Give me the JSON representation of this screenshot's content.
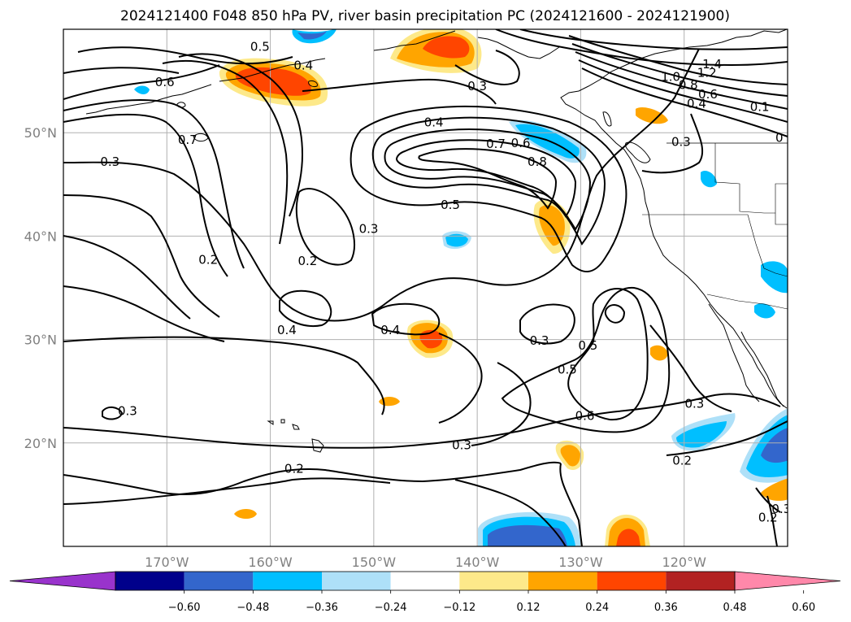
{
  "title": "2024121400 F048 850 hPa PV, river basin precipitation PC (2024121600 - 2024121900)",
  "map": {
    "lon_range": [
      -180,
      -110
    ],
    "lat_range": [
      10,
      60
    ],
    "lat_ticks": [
      {
        "value": 50,
        "label": "50°N"
      },
      {
        "value": 40,
        "label": "40°N"
      },
      {
        "value": 30,
        "label": "30°N"
      },
      {
        "value": 20,
        "label": "20°N"
      }
    ],
    "lon_ticks": [
      {
        "value": -170,
        "label": "170°W"
      },
      {
        "value": -160,
        "label": "160°W"
      },
      {
        "value": -150,
        "label": "150°W"
      },
      {
        "value": -140,
        "label": "140°W"
      },
      {
        "value": -130,
        "label": "130°W"
      },
      {
        "value": -120,
        "label": "120°W"
      }
    ],
    "grid": true
  },
  "colorbar": {
    "extend": "both",
    "colors": [
      "#9933cc",
      "#00008b",
      "#3366cc",
      "#00bfff",
      "#aee0f8",
      "#ffffff",
      "#fde98a",
      "#ffa500",
      "#ff4500",
      "#b22222",
      "#ff88aa"
    ],
    "ticks": [
      "−0.60",
      "−0.48",
      "−0.36",
      "−0.24",
      "−0.12",
      "0.12",
      "0.24",
      "0.36",
      "0.48",
      "0.60"
    ]
  },
  "contour_labels": [
    {
      "text": "0.5",
      "lon": -161,
      "lat": 58.3
    },
    {
      "text": "0.4",
      "lon": -156.8,
      "lat": 56.5
    },
    {
      "text": "0.6",
      "lon": -170.2,
      "lat": 54.9
    },
    {
      "text": "0.7",
      "lon": -168,
      "lat": 49.3
    },
    {
      "text": "0.3",
      "lon": -175.5,
      "lat": 47.2
    },
    {
      "text": "0.2",
      "lon": -166,
      "lat": 37.7
    },
    {
      "text": "0.3",
      "lon": -150.5,
      "lat": 40.7
    },
    {
      "text": "0.2",
      "lon": -156.4,
      "lat": 37.6
    },
    {
      "text": "0.5",
      "lon": -142.6,
      "lat": 43
    },
    {
      "text": "0.4",
      "lon": -144.2,
      "lat": 51
    },
    {
      "text": "0.7",
      "lon": -138.2,
      "lat": 48.9
    },
    {
      "text": "0.6",
      "lon": -135.8,
      "lat": 49
    },
    {
      "text": "0.8",
      "lon": -134.2,
      "lat": 47.2
    },
    {
      "text": "0.3",
      "lon": -140,
      "lat": 54.5
    },
    {
      "text": "0.4",
      "lon": -158.4,
      "lat": 30.9
    },
    {
      "text": "0.4",
      "lon": -148.4,
      "lat": 30.9
    },
    {
      "text": "0.3",
      "lon": -134,
      "lat": 29.9
    },
    {
      "text": "0.5",
      "lon": -129.3,
      "lat": 29.4
    },
    {
      "text": "0.5",
      "lon": -131.3,
      "lat": 27.1
    },
    {
      "text": "0.6",
      "lon": -129.6,
      "lat": 22.6
    },
    {
      "text": "0.3",
      "lon": -141.5,
      "lat": 19.8
    },
    {
      "text": "0.2",
      "lon": -157.7,
      "lat": 17.5
    },
    {
      "text": "0.3",
      "lon": -173.8,
      "lat": 23.1
    },
    {
      "text": "0.3",
      "lon": -119,
      "lat": 23.8
    },
    {
      "text": "0.2",
      "lon": -120.2,
      "lat": 18.3
    },
    {
      "text": "1.4",
      "lon": -117.3,
      "lat": 56.6
    },
    {
      "text": "1.2",
      "lon": -117.8,
      "lat": 55.8
    },
    {
      "text": "1.0",
      "lon": -121.3,
      "lat": 55.4
    },
    {
      "text": "0.8",
      "lon": -119.6,
      "lat": 54.6
    },
    {
      "text": "0.6",
      "lon": -117.7,
      "lat": 53.7
    },
    {
      "text": "0.4",
      "lon": -118.8,
      "lat": 52.8
    },
    {
      "text": "0.1",
      "lon": -112.7,
      "lat": 52.5
    },
    {
      "text": "0.3",
      "lon": -120.3,
      "lat": 49.1
    },
    {
      "text": "0",
      "lon": -110.8,
      "lat": 49.5
    },
    {
      "text": "0.2",
      "lon": -111.9,
      "lat": 12.8
    },
    {
      "text": "0.3",
      "lon": -110.6,
      "lat": 13.6
    }
  ]
}
